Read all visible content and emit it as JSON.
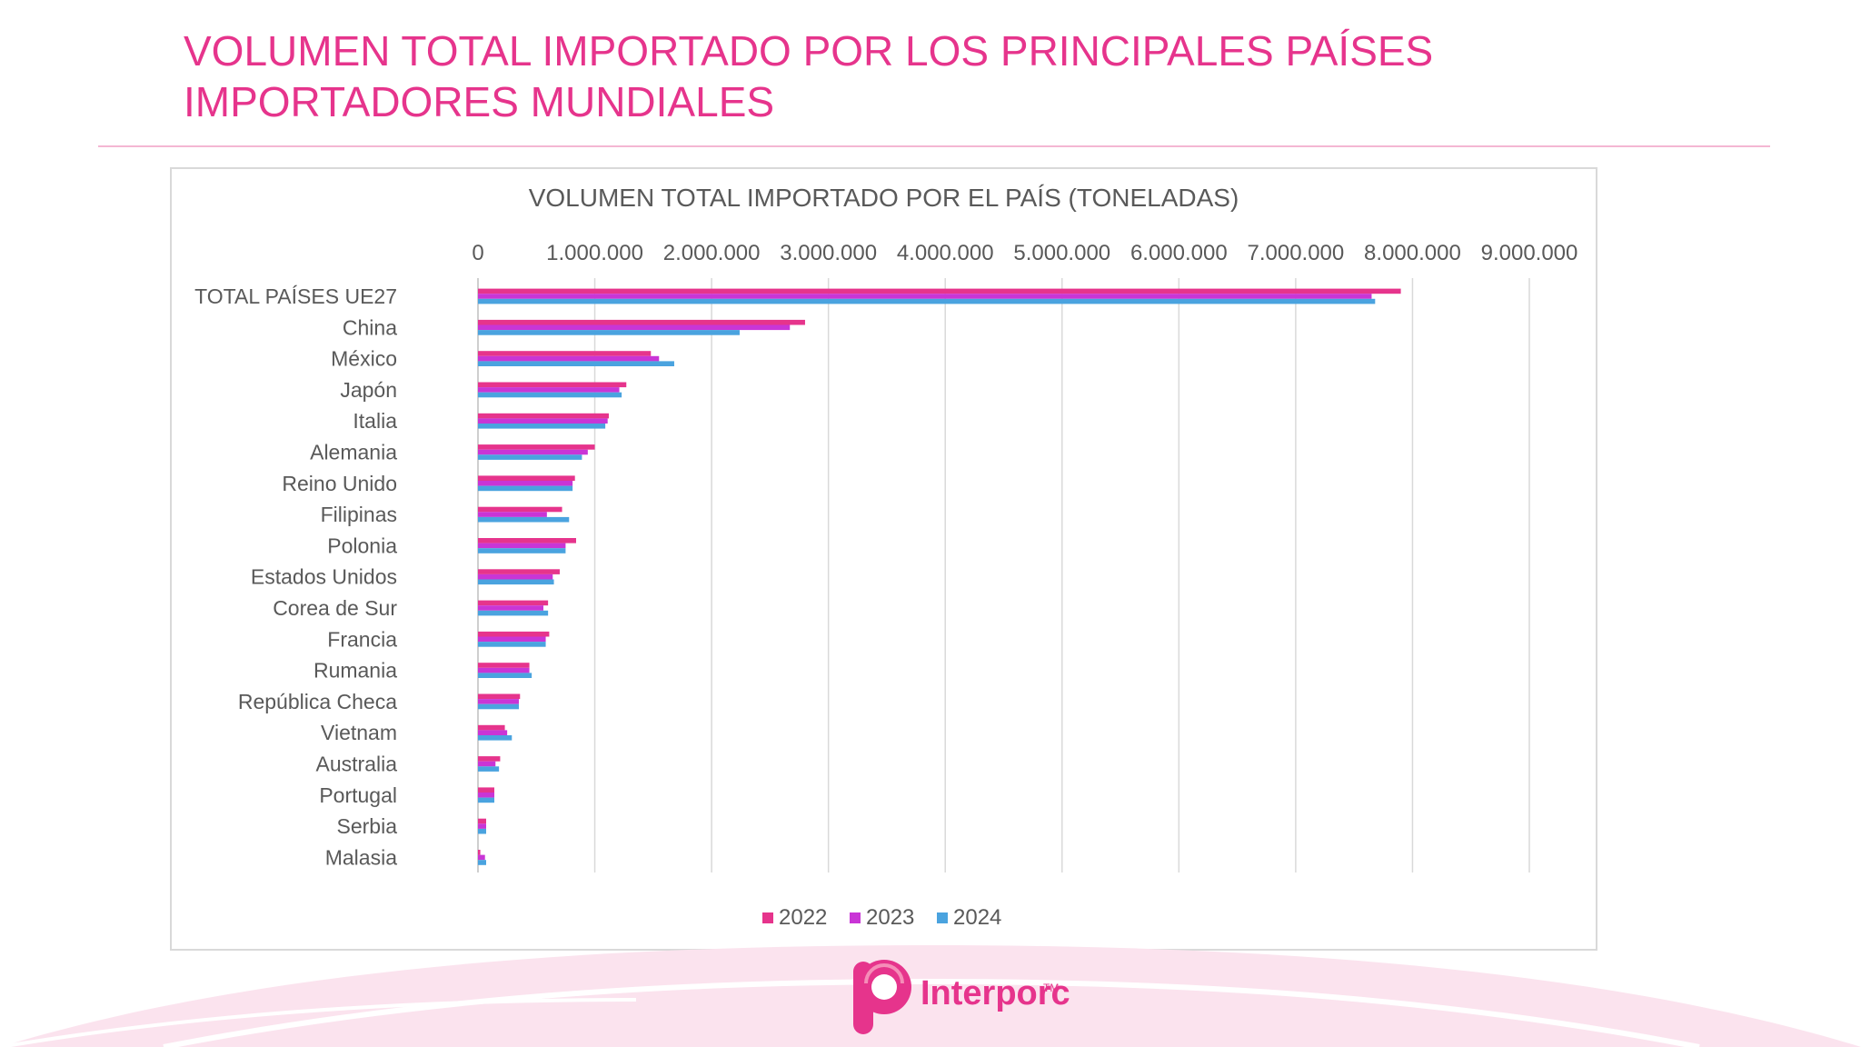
{
  "page": {
    "title": "VOLUMEN TOTAL IMPORTADO POR LOS PRINCIPALES PAÍSES IMPORTADORES MUNDIALES",
    "logo_text": "Interporc",
    "logo_tm": "TM"
  },
  "colors": {
    "accent": "#e6348c",
    "s2022": "#e6348c",
    "s2023": "#c935d6",
    "s2024": "#4aa3df",
    "grid": "#d9d9d9",
    "text": "#595959"
  },
  "chart_data": {
    "type": "bar",
    "orientation": "horizontal",
    "title": "VOLUMEN  TOTAL IMPORTADO POR EL PAÍS (TONELADAS)",
    "categories": [
      "TOTAL PAÍSES UE27",
      "China",
      "México",
      "Japón",
      "Italia",
      "Alemania",
      "Reino Unido",
      "Filipinas",
      "Polonia",
      "Estados Unidos",
      "Corea de Sur",
      "Francia",
      "Rumania",
      "República Checa",
      "Vietnam",
      "Australia",
      "Portugal",
      "Serbia",
      "Malasia"
    ],
    "series": [
      {
        "name": "2022",
        "color": "#e6348c",
        "values": [
          7900000,
          2800000,
          1480000,
          1270000,
          1120000,
          1000000,
          830000,
          720000,
          840000,
          700000,
          600000,
          610000,
          440000,
          360000,
          230000,
          190000,
          140000,
          70000,
          20000
        ]
      },
      {
        "name": "2023",
        "color": "#c935d6",
        "values": [
          7650000,
          2670000,
          1550000,
          1210000,
          1110000,
          940000,
          810000,
          590000,
          750000,
          640000,
          560000,
          580000,
          440000,
          350000,
          250000,
          150000,
          140000,
          70000,
          60000
        ]
      },
      {
        "name": "2024",
        "color": "#4aa3df",
        "values": [
          7680000,
          2240000,
          1680000,
          1230000,
          1090000,
          890000,
          810000,
          780000,
          750000,
          650000,
          600000,
          580000,
          460000,
          350000,
          290000,
          180000,
          140000,
          70000,
          70000
        ]
      }
    ],
    "x_ticks": [
      "0",
      "1.000.000",
      "2.000.000",
      "3.000.000",
      "4.000.000",
      "5.000.000",
      "6.000.000",
      "7.000.000",
      "8.000.000",
      "9.000.000"
    ],
    "xlim": [
      0,
      9000000
    ],
    "x_axis_position": "top",
    "grid": true,
    "legend_position": "bottom",
    "legend": [
      "2022",
      "2023",
      "2024"
    ]
  }
}
